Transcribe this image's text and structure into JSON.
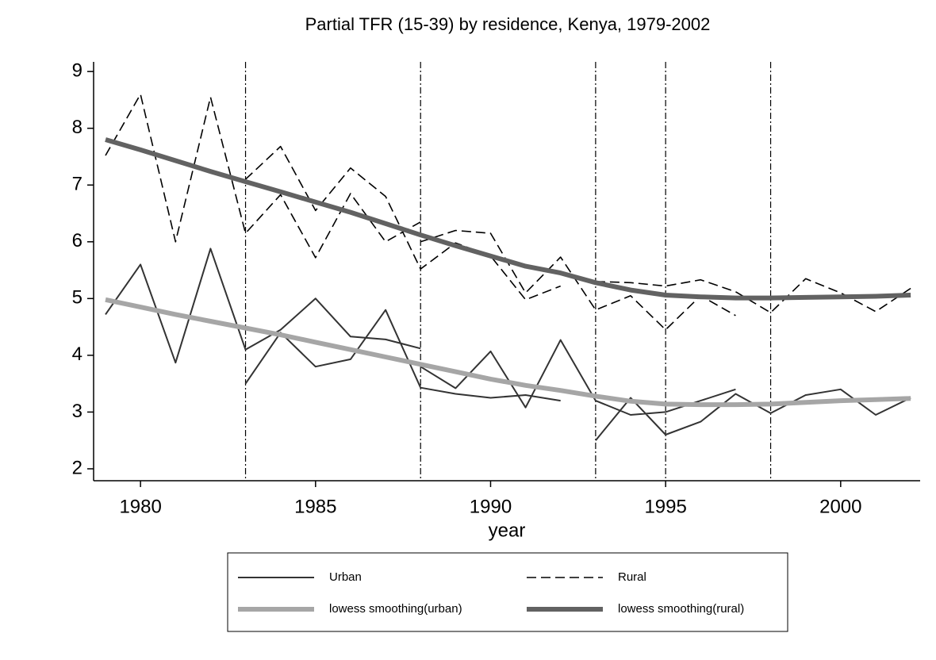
{
  "chart_data": {
    "type": "line",
    "title": "Partial TFR (15-39) by residence, Kenya, 1979-2002",
    "x_label": "year",
    "xlim": [
      1978.66,
      2002.27
    ],
    "ylim": [
      1.79,
      9.17
    ],
    "xticks": [
      1980,
      1985,
      1990,
      1995,
      2000
    ],
    "yticks": [
      2,
      3,
      4,
      5,
      6,
      7,
      8,
      9
    ],
    "xlines": [
      1983,
      1988,
      1993,
      1995,
      1998
    ],
    "series": [
      {
        "name": "Urban",
        "color": "#333333",
        "width": 2,
        "dash": "none",
        "x": [
          1979,
          1980,
          1981,
          1982,
          1983,
          1984,
          1985,
          1986,
          1987,
          1988,
          null,
          1983,
          1984,
          1985,
          1986,
          1987,
          1988,
          1989,
          1990,
          1991,
          1992,
          null,
          1988,
          1989,
          1990,
          1991,
          1992,
          1993,
          1994,
          1995,
          1996,
          1997,
          null,
          1993,
          1994,
          1995,
          1996,
          1997,
          1998,
          1999,
          2000,
          2001,
          2002
        ],
        "values": [
          4.72,
          5.6,
          3.87,
          5.88,
          4.1,
          4.45,
          5.0,
          4.33,
          4.28,
          4.12,
          null,
          3.5,
          4.4,
          3.8,
          3.93,
          4.8,
          3.43,
          3.32,
          3.25,
          3.3,
          3.2,
          null,
          3.8,
          3.42,
          4.07,
          3.08,
          4.27,
          3.2,
          2.95,
          3.0,
          3.2,
          3.4,
          null,
          2.5,
          3.25,
          2.6,
          2.83,
          3.32,
          2.98,
          3.3,
          3.4,
          2.95,
          3.25
        ]
      },
      {
        "name": "Rural",
        "color": "#000000",
        "width": 1.6,
        "dash": "12 6",
        "x": [
          1979,
          1980,
          1981,
          1982,
          1983,
          1984,
          1985,
          1986,
          1987,
          1988,
          null,
          1983,
          1984,
          1985,
          1986,
          1987,
          1988,
          1989,
          1990,
          1991,
          1992,
          null,
          1988,
          1989,
          1990,
          1991,
          1992,
          1993,
          1994,
          1995,
          1996,
          1997,
          null,
          1993,
          1994,
          1995,
          1996,
          1997,
          1998,
          1999,
          2000,
          2001,
          2002
        ],
        "values": [
          7.52,
          8.6,
          6.0,
          8.55,
          6.15,
          6.83,
          5.72,
          6.85,
          6.0,
          6.35,
          null,
          7.1,
          7.68,
          6.55,
          7.3,
          6.8,
          5.52,
          5.98,
          5.75,
          4.98,
          5.22,
          null,
          6.0,
          6.2,
          6.15,
          5.1,
          5.73,
          4.8,
          5.05,
          4.45,
          5.05,
          4.7,
          null,
          5.3,
          5.28,
          5.22,
          5.33,
          5.12,
          4.75,
          5.35,
          5.1,
          4.77,
          5.18
        ]
      },
      {
        "name": "lowess smoothing(urban)",
        "color": "#a6a6a6",
        "width": 6,
        "dash": "none",
        "x": [
          1979,
          1980,
          1981,
          1982,
          1983,
          1984,
          1985,
          1986,
          1987,
          1988,
          1989,
          1990,
          1991,
          1992,
          1993,
          1994,
          1995,
          1996,
          1997,
          1998,
          1999,
          2000,
          2001,
          2002
        ],
        "values": [
          4.98,
          4.85,
          4.72,
          4.6,
          4.48,
          4.36,
          4.23,
          4.1,
          3.97,
          3.84,
          3.71,
          3.58,
          3.47,
          3.38,
          3.28,
          3.19,
          3.14,
          3.13,
          3.13,
          3.14,
          3.17,
          3.2,
          3.22,
          3.24
        ]
      },
      {
        "name": "lowess smoothing(rural)",
        "color": "#626262",
        "width": 6,
        "dash": "none",
        "x": [
          1979,
          1980,
          1981,
          1982,
          1983,
          1984,
          1985,
          1986,
          1987,
          1988,
          1989,
          1990,
          1991,
          1992,
          1993,
          1994,
          1995,
          1996,
          1997,
          1998,
          1999,
          2000,
          2001,
          2002
        ],
        "values": [
          7.8,
          7.62,
          7.43,
          7.24,
          7.06,
          6.88,
          6.7,
          6.52,
          6.32,
          6.12,
          5.93,
          5.75,
          5.57,
          5.45,
          5.28,
          5.15,
          5.06,
          5.03,
          5.01,
          5.01,
          5.02,
          5.03,
          5.04,
          5.06
        ]
      }
    ]
  }
}
